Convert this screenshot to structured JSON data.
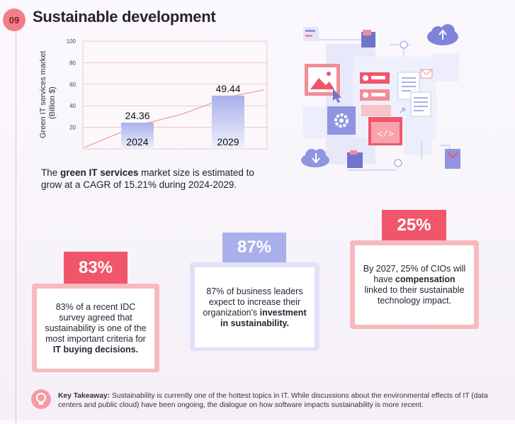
{
  "header": {
    "number": "09",
    "title": "Sustainable development"
  },
  "chart_data": {
    "type": "bar",
    "ylabel_line1": "Green IT services market",
    "ylabel_line2": "(Billion $)",
    "y_ticks": [
      20,
      40,
      60,
      80,
      100
    ],
    "ylim": [
      0,
      100
    ],
    "categories": [
      "2024",
      "2029"
    ],
    "values": [
      24.36,
      49.44
    ],
    "value_labels": [
      "24.36",
      "49.44"
    ],
    "trend_line": true,
    "grid": true,
    "colors": {
      "bar_top": "#aab0ec",
      "bar_bottom": "#eef0fb",
      "line": "#f3a0a8",
      "grid": "#f6c4c8"
    }
  },
  "description": {
    "pre": "The ",
    "bold": "green IT services",
    "post": " market size is estimated to grow at a CAGR of 15.21% during 2024-2029."
  },
  "stats": [
    {
      "pct": "83%",
      "pre": "83% of a recent IDC survey agreed that sustainability is one of the most important criteria for ",
      "bold": "IT buying decisions.",
      "post": ""
    },
    {
      "pct": "87%",
      "pre": "87% of business leaders expect to increase their organization's ",
      "bold": "investment in sustainability.",
      "post": ""
    },
    {
      "pct": "25%",
      "pre": "By 2027, 25% of CIOs will have ",
      "bold": "compensation",
      "post": " linked to their sustainable technology impact."
    }
  ],
  "takeaway": {
    "label": "Key Takeaway:",
    "text": " Sustainability is currently one of the hottest topics in IT. While discussions about the environmental effects of IT (data centers and public cloud) have been ongoing, the dialogue on how software impacts sustainability is more recent."
  },
  "illustration": {
    "icons": [
      "image-icon",
      "gear-icon",
      "code-icon",
      "cloud-upload-icon",
      "cloud-download-icon",
      "document-icon",
      "folder-icon",
      "lock-icon",
      "mail-icon",
      "cursor-icon"
    ],
    "code_glyph": "</>"
  },
  "theme": {
    "pink": "#f0566a",
    "pink_light": "#f8b5bb",
    "lavender": "#aab0ec",
    "lavender_light": "#dfe2f8",
    "badge": "#f47d86"
  }
}
